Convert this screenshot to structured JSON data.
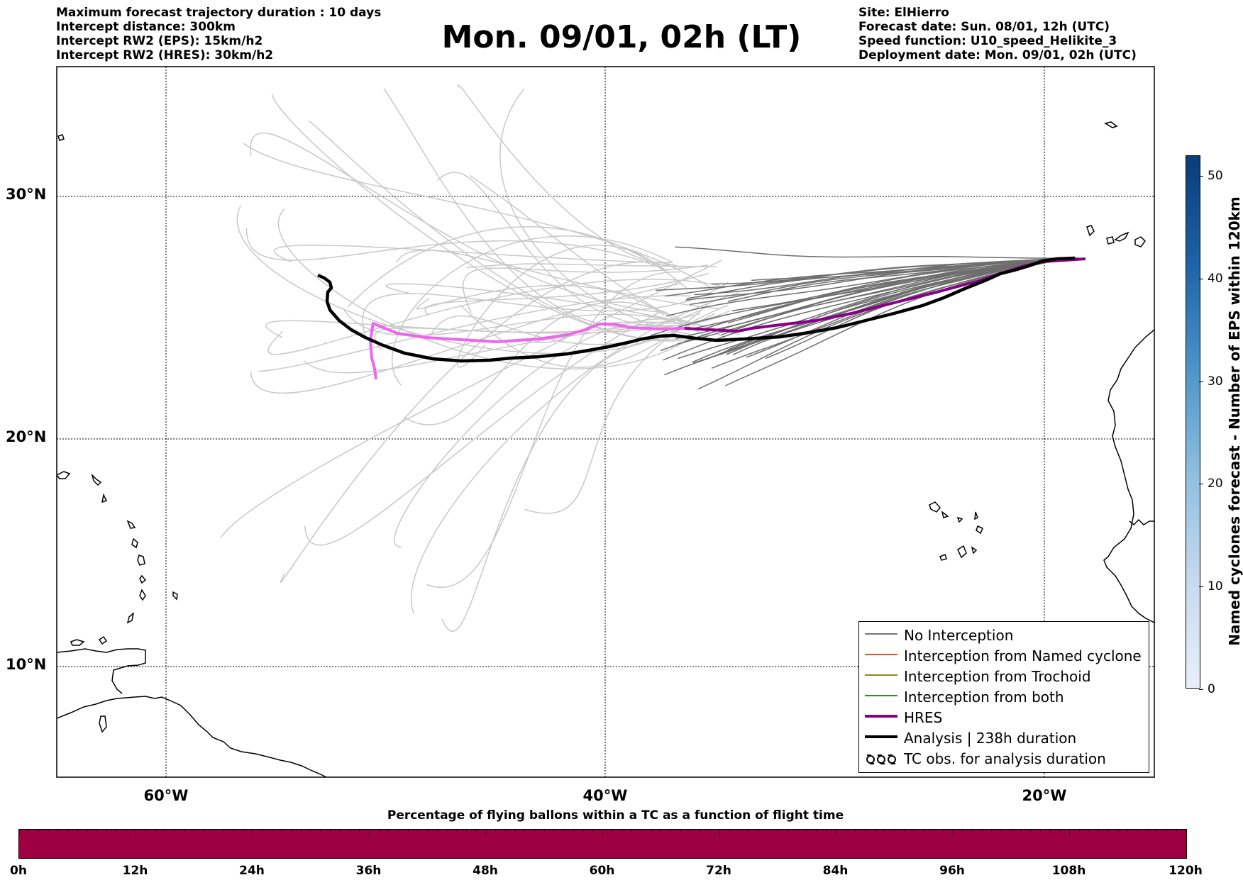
{
  "header_left": [
    "Maximum forecast trajectory duration : 10 days",
    "Intercept distance: 300km",
    "Intercept RW2 (EPS):  15km/h2",
    "Intercept RW2 (HRES): 30km/h2"
  ],
  "title": "Mon. 09/01, 02h (LT)",
  "header_right": [
    "Site: ElHierro",
    "Forecast date: Sun. 08/01, 12h (UTC)",
    "Speed function: U10_speed_Helikite_3",
    "Deployment date: Mon. 09/01, 02h (UTC)"
  ],
  "lat_labels": [
    "30°N",
    "20°N",
    "10°N"
  ],
  "lon_labels": [
    "60°W",
    "40°W",
    "20°W"
  ],
  "legend": [
    {
      "label": "No Interception",
      "color": "#777777",
      "width": 1.5,
      "icon": "line"
    },
    {
      "label": "Interception from Named cyclone",
      "color": "#e8541c",
      "width": 1.5,
      "icon": "line"
    },
    {
      "label": "Interception from Trochoid",
      "color": "#8b8b1a",
      "width": 1.5,
      "icon": "line"
    },
    {
      "label": "Interception from both",
      "color": "#2e8b2e",
      "width": 1.5,
      "icon": "line"
    },
    {
      "label": "HRES",
      "color": "#880088",
      "width": 4,
      "icon": "line"
    },
    {
      "label": "Analysis | 238h duration",
      "color": "#000000",
      "width": 4,
      "icon": "line"
    },
    {
      "label": "TC obs. for analysis duration",
      "color": "#000000",
      "icon": "tc-symbols"
    }
  ],
  "colorbar": {
    "label": "Named cyclones forecast - Number of EPS within 120km",
    "ticks": [
      "0",
      "10",
      "20",
      "30",
      "40",
      "50"
    ],
    "min": 0,
    "max": 52
  },
  "flight_time": {
    "title": "Percentage of flying ballons within a TC as a function of flight time",
    "ticks": [
      "0h",
      "12h",
      "24h",
      "36h",
      "48h",
      "60h",
      "72h",
      "84h",
      "96h",
      "108h",
      "120h"
    ],
    "bar_color": "#9e0142"
  },
  "colors": {
    "hres": "#880088",
    "hres_extension": "#ee66ee",
    "analysis": "#000000",
    "eps_near": "#6e6e6e",
    "eps_far": "#c8c8c8"
  }
}
